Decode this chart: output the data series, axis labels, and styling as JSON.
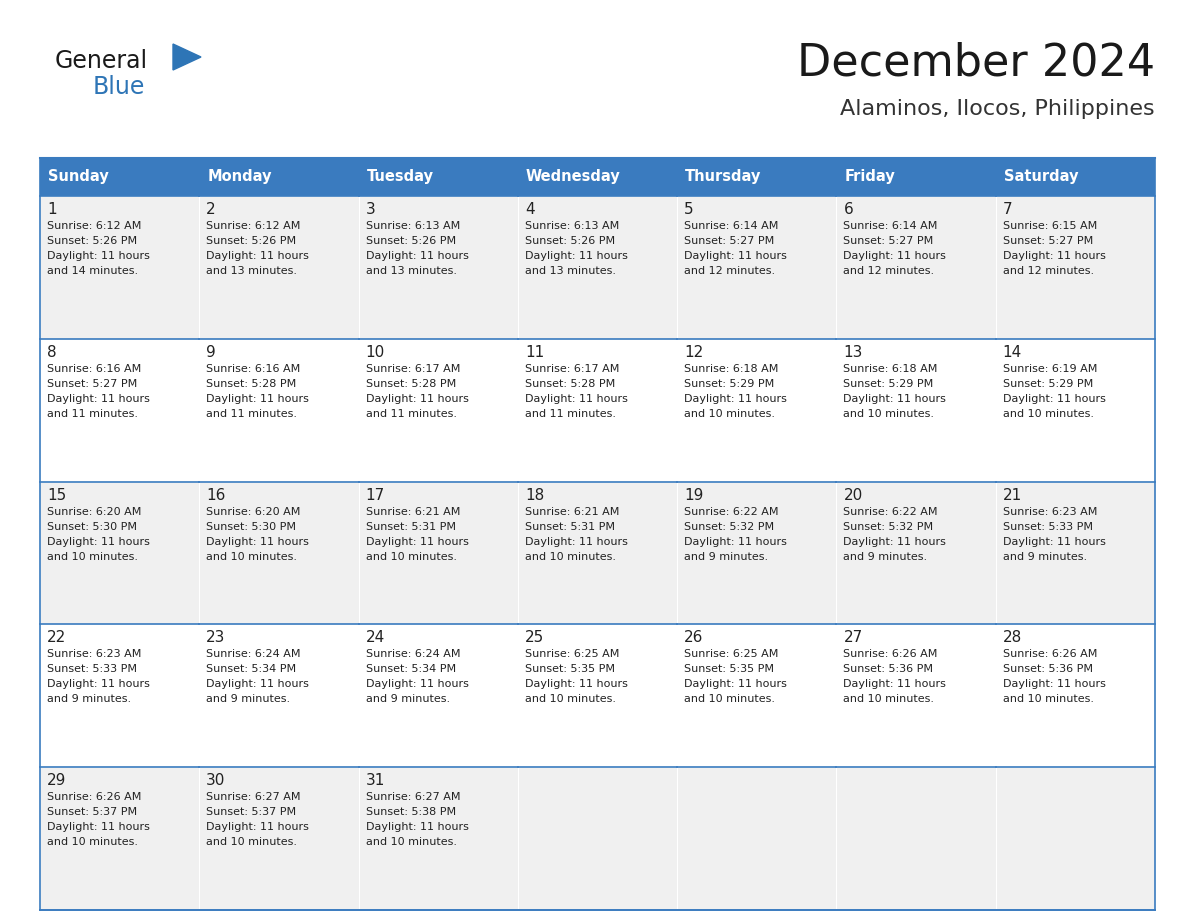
{
  "title": "December 2024",
  "subtitle": "Alaminos, Ilocos, Philippines",
  "header_bg_color": "#3a7bbf",
  "header_text_color": "#ffffff",
  "border_color": "#3a7bbf",
  "day_names": [
    "Sunday",
    "Monday",
    "Tuesday",
    "Wednesday",
    "Thursday",
    "Friday",
    "Saturday"
  ],
  "logo_general_color": "#1a1a1a",
  "logo_blue_color": "#2e75b6",
  "title_color": "#1a1a1a",
  "subtitle_color": "#333333",
  "text_color": "#222222",
  "calendar": [
    [
      {
        "day": 1,
        "sunrise": "6:12 AM",
        "sunset": "5:26 PM",
        "dl1": "Daylight: 11 hours",
        "dl2": "and 14 minutes."
      },
      {
        "day": 2,
        "sunrise": "6:12 AM",
        "sunset": "5:26 PM",
        "dl1": "Daylight: 11 hours",
        "dl2": "and 13 minutes."
      },
      {
        "day": 3,
        "sunrise": "6:13 AM",
        "sunset": "5:26 PM",
        "dl1": "Daylight: 11 hours",
        "dl2": "and 13 minutes."
      },
      {
        "day": 4,
        "sunrise": "6:13 AM",
        "sunset": "5:26 PM",
        "dl1": "Daylight: 11 hours",
        "dl2": "and 13 minutes."
      },
      {
        "day": 5,
        "sunrise": "6:14 AM",
        "sunset": "5:27 PM",
        "dl1": "Daylight: 11 hours",
        "dl2": "and 12 minutes."
      },
      {
        "day": 6,
        "sunrise": "6:14 AM",
        "sunset": "5:27 PM",
        "dl1": "Daylight: 11 hours",
        "dl2": "and 12 minutes."
      },
      {
        "day": 7,
        "sunrise": "6:15 AM",
        "sunset": "5:27 PM",
        "dl1": "Daylight: 11 hours",
        "dl2": "and 12 minutes."
      }
    ],
    [
      {
        "day": 8,
        "sunrise": "6:16 AM",
        "sunset": "5:27 PM",
        "dl1": "Daylight: 11 hours",
        "dl2": "and 11 minutes."
      },
      {
        "day": 9,
        "sunrise": "6:16 AM",
        "sunset": "5:28 PM",
        "dl1": "Daylight: 11 hours",
        "dl2": "and 11 minutes."
      },
      {
        "day": 10,
        "sunrise": "6:17 AM",
        "sunset": "5:28 PM",
        "dl1": "Daylight: 11 hours",
        "dl2": "and 11 minutes."
      },
      {
        "day": 11,
        "sunrise": "6:17 AM",
        "sunset": "5:28 PM",
        "dl1": "Daylight: 11 hours",
        "dl2": "and 11 minutes."
      },
      {
        "day": 12,
        "sunrise": "6:18 AM",
        "sunset": "5:29 PM",
        "dl1": "Daylight: 11 hours",
        "dl2": "and 10 minutes."
      },
      {
        "day": 13,
        "sunrise": "6:18 AM",
        "sunset": "5:29 PM",
        "dl1": "Daylight: 11 hours",
        "dl2": "and 10 minutes."
      },
      {
        "day": 14,
        "sunrise": "6:19 AM",
        "sunset": "5:29 PM",
        "dl1": "Daylight: 11 hours",
        "dl2": "and 10 minutes."
      }
    ],
    [
      {
        "day": 15,
        "sunrise": "6:20 AM",
        "sunset": "5:30 PM",
        "dl1": "Daylight: 11 hours",
        "dl2": "and 10 minutes."
      },
      {
        "day": 16,
        "sunrise": "6:20 AM",
        "sunset": "5:30 PM",
        "dl1": "Daylight: 11 hours",
        "dl2": "and 10 minutes."
      },
      {
        "day": 17,
        "sunrise": "6:21 AM",
        "sunset": "5:31 PM",
        "dl1": "Daylight: 11 hours",
        "dl2": "and 10 minutes."
      },
      {
        "day": 18,
        "sunrise": "6:21 AM",
        "sunset": "5:31 PM",
        "dl1": "Daylight: 11 hours",
        "dl2": "and 10 minutes."
      },
      {
        "day": 19,
        "sunrise": "6:22 AM",
        "sunset": "5:32 PM",
        "dl1": "Daylight: 11 hours",
        "dl2": "and 9 minutes."
      },
      {
        "day": 20,
        "sunrise": "6:22 AM",
        "sunset": "5:32 PM",
        "dl1": "Daylight: 11 hours",
        "dl2": "and 9 minutes."
      },
      {
        "day": 21,
        "sunrise": "6:23 AM",
        "sunset": "5:33 PM",
        "dl1": "Daylight: 11 hours",
        "dl2": "and 9 minutes."
      }
    ],
    [
      {
        "day": 22,
        "sunrise": "6:23 AM",
        "sunset": "5:33 PM",
        "dl1": "Daylight: 11 hours",
        "dl2": "and 9 minutes."
      },
      {
        "day": 23,
        "sunrise": "6:24 AM",
        "sunset": "5:34 PM",
        "dl1": "Daylight: 11 hours",
        "dl2": "and 9 minutes."
      },
      {
        "day": 24,
        "sunrise": "6:24 AM",
        "sunset": "5:34 PM",
        "dl1": "Daylight: 11 hours",
        "dl2": "and 9 minutes."
      },
      {
        "day": 25,
        "sunrise": "6:25 AM",
        "sunset": "5:35 PM",
        "dl1": "Daylight: 11 hours",
        "dl2": "and 10 minutes."
      },
      {
        "day": 26,
        "sunrise": "6:25 AM",
        "sunset": "5:35 PM",
        "dl1": "Daylight: 11 hours",
        "dl2": "and 10 minutes."
      },
      {
        "day": 27,
        "sunrise": "6:26 AM",
        "sunset": "5:36 PM",
        "dl1": "Daylight: 11 hours",
        "dl2": "and 10 minutes."
      },
      {
        "day": 28,
        "sunrise": "6:26 AM",
        "sunset": "5:36 PM",
        "dl1": "Daylight: 11 hours",
        "dl2": "and 10 minutes."
      }
    ],
    [
      {
        "day": 29,
        "sunrise": "6:26 AM",
        "sunset": "5:37 PM",
        "dl1": "Daylight: 11 hours",
        "dl2": "and 10 minutes."
      },
      {
        "day": 30,
        "sunrise": "6:27 AM",
        "sunset": "5:37 PM",
        "dl1": "Daylight: 11 hours",
        "dl2": "and 10 minutes."
      },
      {
        "day": 31,
        "sunrise": "6:27 AM",
        "sunset": "5:38 PM",
        "dl1": "Daylight: 11 hours",
        "dl2": "and 10 minutes."
      },
      null,
      null,
      null,
      null
    ]
  ]
}
